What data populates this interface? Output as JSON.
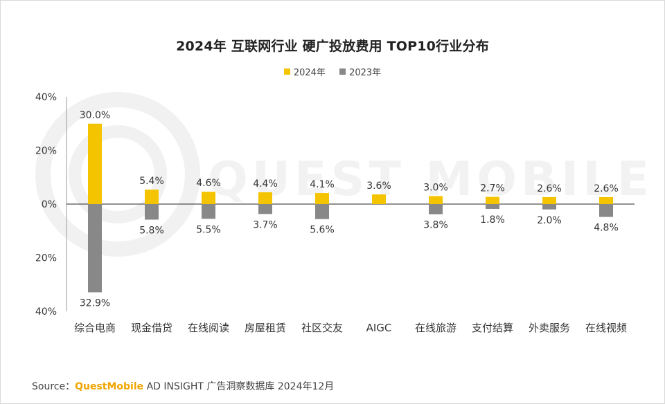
{
  "chart_data": {
    "type": "bar",
    "title": "2024年 互联网行业 硬广投放费用 TOP10行业分布",
    "legend_position": "top-center",
    "categories": [
      "综合电商",
      "现金借贷",
      "在线阅读",
      "房屋租赁",
      "社区交友",
      "AIGC",
      "在线旅游",
      "支付结算",
      "外卖服务",
      "在线视频"
    ],
    "series": [
      {
        "name": "2024年",
        "color": "#f5c400",
        "direction": "up",
        "values": [
          30.0,
          5.4,
          4.6,
          4.4,
          4.1,
          3.6,
          3.0,
          2.7,
          2.6,
          2.6
        ],
        "labels": [
          "30.0%",
          "5.4%",
          "4.6%",
          "4.4%",
          "4.1%",
          "3.6%",
          "3.0%",
          "2.7%",
          "2.6%",
          "2.6%"
        ]
      },
      {
        "name": "2023年",
        "color": "#888888",
        "direction": "down",
        "values": [
          32.9,
          5.8,
          5.5,
          3.7,
          5.6,
          null,
          3.8,
          1.8,
          2.0,
          4.8
        ],
        "labels": [
          "32.9%",
          "5.8%",
          "5.5%",
          "3.7%",
          "5.6%",
          "",
          "3.8%",
          "1.8%",
          "2.0%",
          "4.8%"
        ]
      }
    ],
    "y_ticks": [
      "40%",
      "20%",
      "0%",
      "20%",
      "40%"
    ],
    "ylim": [
      -40,
      40
    ],
    "grid": false
  },
  "legend": {
    "items": [
      {
        "label": "2024年",
        "color": "#f5c400"
      },
      {
        "label": "2023年",
        "color": "#888888"
      }
    ]
  },
  "source": {
    "prefix": "Source：",
    "brand": "QuestMobile",
    "rest": " AD INSIGHT 广告洞察数据库 2024年12月"
  },
  "watermark": "QUEST MOBILE"
}
